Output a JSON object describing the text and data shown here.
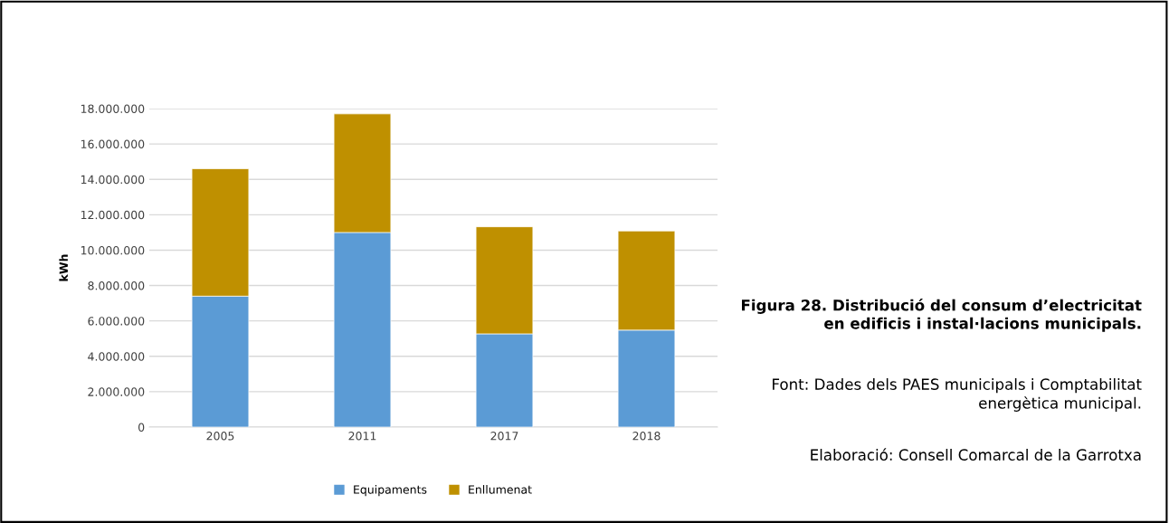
{
  "chart_data": {
    "type": "bar",
    "stacked": true,
    "ylabel": "kWh",
    "title": "Figura 28. Distribució del consum d’electricitat en edificis i instal·lacions municipals.",
    "annotations": [
      "Font: Dades dels PAES municipals i Comptabilitat energètica municipal.",
      "Elaboració: Consell Comarcal de la Garrotxa"
    ],
    "categories": [
      "2005",
      "2011",
      "2017",
      "2018"
    ],
    "series": [
      {
        "name": "Equipaments",
        "color": "#5b9bd5",
        "values": [
          7400000,
          11000000,
          5270000,
          5480000
        ]
      },
      {
        "name": "Enllumenat",
        "color": "#bf9000",
        "values": [
          7200000,
          6700000,
          6050000,
          5600000
        ]
      }
    ],
    "ylim": [
      0,
      18000000
    ],
    "yticks": [
      0,
      {
        "value": 2000000,
        "label": "2.000.000"
      },
      {
        "value": 4000000,
        "label": "4.000.000"
      },
      {
        "value": 6000000,
        "label": "6.000.000"
      },
      {
        "value": 8000000,
        "label": "8.000.000"
      },
      {
        "value": 10000000,
        "label": "10.000.000"
      },
      {
        "value": 12000000,
        "label": "12.000.000"
      },
      {
        "value": 14000000,
        "label": "14.000.000"
      },
      {
        "value": 16000000,
        "label": "16.000.000"
      },
      {
        "value": 18000000,
        "label": "18.000.000"
      }
    ],
    "grid": "y",
    "legend": "bottom"
  }
}
